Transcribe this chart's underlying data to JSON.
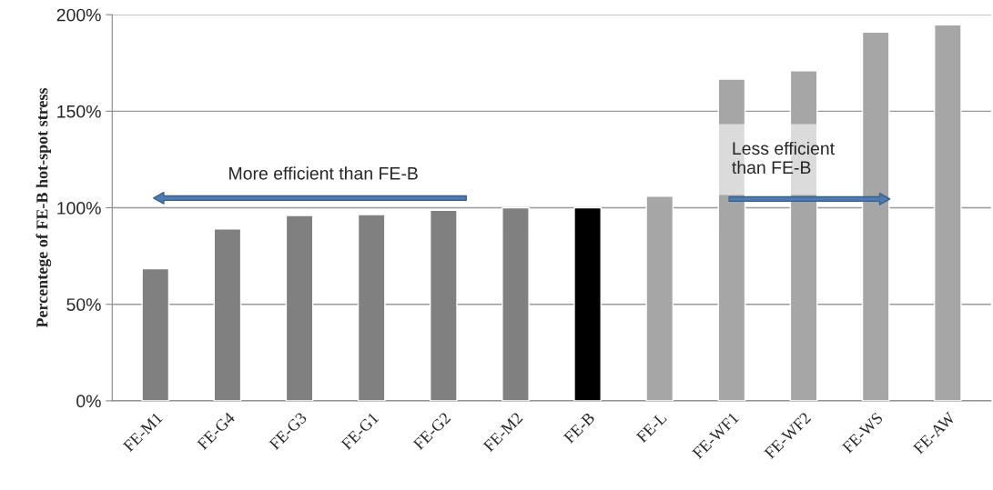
{
  "chart_data": {
    "type": "bar",
    "ylabel": "Percentege of FE-B hot-spot stress",
    "categories": [
      "FE-M1",
      "FE-G4",
      "FE-G3",
      "FE-G1",
      "FE-G2",
      "FE-M2",
      "FE-B",
      "FE-L",
      "FE-WF1",
      "FE-WF2",
      "FE-WS",
      "FE-AW"
    ],
    "values": [
      68.5,
      89,
      96,
      96.5,
      98.7,
      100,
      100,
      106,
      166.6,
      171,
      191,
      194.7
    ],
    "colors": [
      "#808080",
      "#808080",
      "#808080",
      "#808080",
      "#808080",
      "#808080",
      "#000000",
      "#a6a6a6",
      "#a6a6a6",
      "#a6a6a6",
      "#a6a6a6",
      "#a6a6a6"
    ],
    "ylim": [
      0,
      200
    ],
    "yticks": [
      {
        "value": 0,
        "label": "0%"
      },
      {
        "value": 50,
        "label": "50%"
      },
      {
        "value": 100,
        "label": "100%"
      },
      {
        "value": 150,
        "label": "150%"
      },
      {
        "value": 200,
        "label": "200%"
      }
    ],
    "grid": "y",
    "annotations": [
      "More efficient than FE-B",
      "Less efficient\nthan FE-B"
    ]
  }
}
